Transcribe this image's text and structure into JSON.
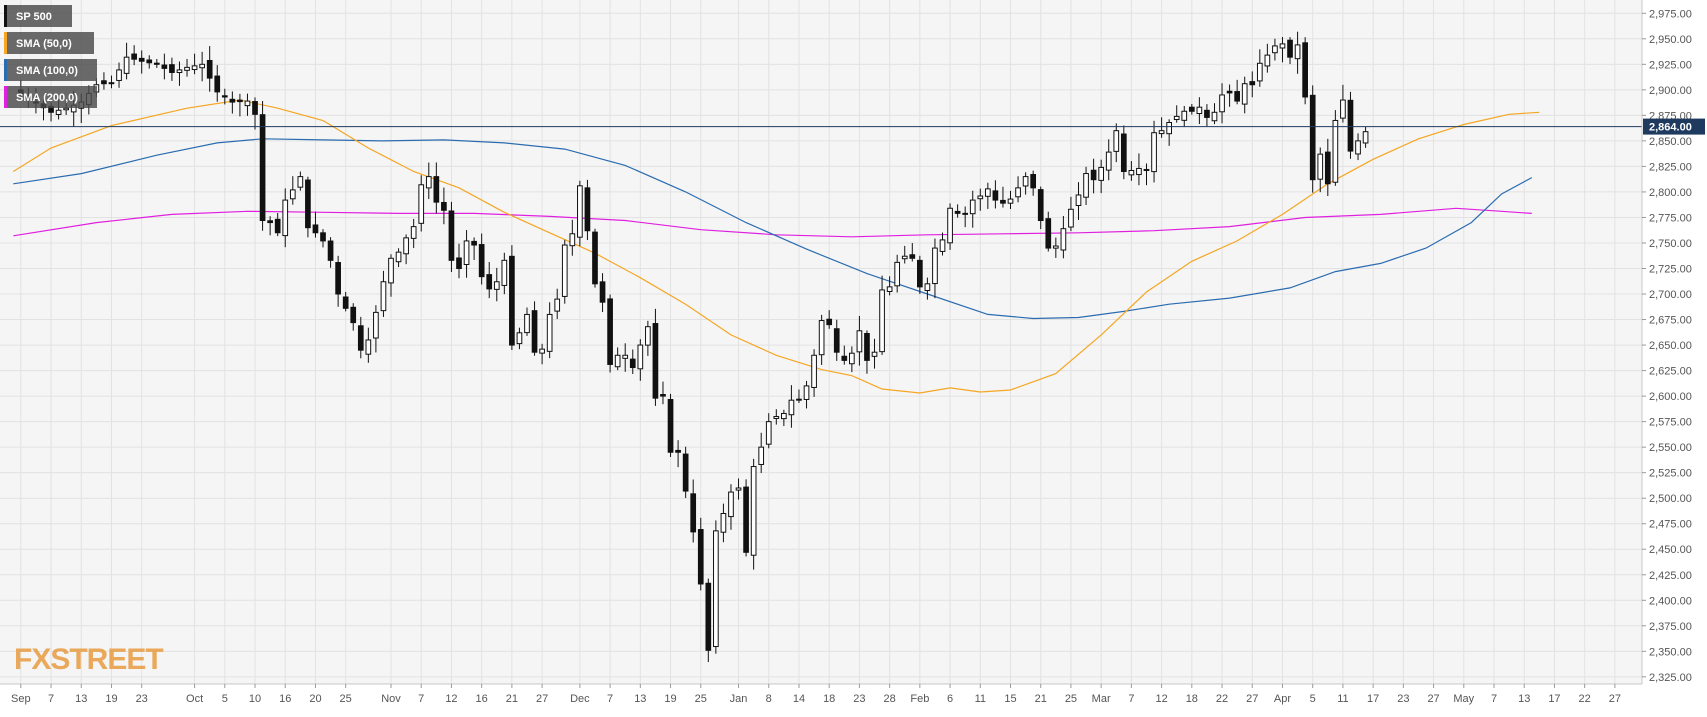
{
  "chart_data": {
    "type": "candlestick",
    "title": "",
    "instrument": "SP 500",
    "legend": [
      {
        "name": "SP 500",
        "color": "#111111"
      },
      {
        "name": "SMA (50,0)",
        "color": "#f5a623"
      },
      {
        "name": "SMA (100,0)",
        "color": "#2b6cb0"
      },
      {
        "name": "SMA (200,0)",
        "color": "#e020e0"
      }
    ],
    "ylim": [
      2318,
      2988
    ],
    "y_ticks": [
      "2,325.00",
      "2,350.00",
      "2,375.00",
      "2,400.00",
      "2,425.00",
      "2,450.00",
      "2,475.00",
      "2,500.00",
      "2,525.00",
      "2,550.00",
      "2,575.00",
      "2,600.00",
      "2,625.00",
      "2,650.00",
      "2,675.00",
      "2,700.00",
      "2,725.00",
      "2,750.00",
      "2,775.00",
      "2,800.00",
      "2,825.00",
      "2,850.00",
      "2,875.00",
      "2,900.00",
      "2,925.00",
      "2,950.00",
      "2,975.00"
    ],
    "x_ticks": [
      {
        "label": "Sep",
        "i": 0
      },
      {
        "label": "7",
        "i": 4
      },
      {
        "label": "13",
        "i": 8
      },
      {
        "label": "19",
        "i": 12
      },
      {
        "label": "23",
        "i": 16
      },
      {
        "label": "Oct",
        "i": 23
      },
      {
        "label": "5",
        "i": 27
      },
      {
        "label": "10",
        "i": 31
      },
      {
        "label": "16",
        "i": 35
      },
      {
        "label": "20",
        "i": 39
      },
      {
        "label": "25",
        "i": 43
      },
      {
        "label": "Nov",
        "i": 49
      },
      {
        "label": "7",
        "i": 53
      },
      {
        "label": "12",
        "i": 57
      },
      {
        "label": "16",
        "i": 61
      },
      {
        "label": "21",
        "i": 65
      },
      {
        "label": "27",
        "i": 69
      },
      {
        "label": "Dec",
        "i": 74
      },
      {
        "label": "7",
        "i": 78
      },
      {
        "label": "13",
        "i": 82
      },
      {
        "label": "19",
        "i": 86
      },
      {
        "label": "25",
        "i": 90
      },
      {
        "label": "Jan",
        "i": 95
      },
      {
        "label": "8",
        "i": 99
      },
      {
        "label": "14",
        "i": 103
      },
      {
        "label": "18",
        "i": 107
      },
      {
        "label": "23",
        "i": 111
      },
      {
        "label": "28",
        "i": 115
      },
      {
        "label": "Feb",
        "i": 119
      },
      {
        "label": "6",
        "i": 123
      },
      {
        "label": "11",
        "i": 127
      },
      {
        "label": "15",
        "i": 131
      },
      {
        "label": "21",
        "i": 135
      },
      {
        "label": "25",
        "i": 139
      },
      {
        "label": "Mar",
        "i": 143
      },
      {
        "label": "7",
        "i": 147
      },
      {
        "label": "12",
        "i": 151
      },
      {
        "label": "18",
        "i": 155
      },
      {
        "label": "22",
        "i": 159
      },
      {
        "label": "27",
        "i": 163
      },
      {
        "label": "Apr",
        "i": 167
      },
      {
        "label": "5",
        "i": 171
      },
      {
        "label": "11",
        "i": 175
      },
      {
        "label": "17",
        "i": 179
      },
      {
        "label": "23",
        "i": 183
      },
      {
        "label": "27",
        "i": 187
      },
      {
        "label": "May",
        "i": 191
      },
      {
        "label": "7",
        "i": 195
      },
      {
        "label": "13",
        "i": 199
      },
      {
        "label": "17",
        "i": 203
      },
      {
        "label": "22",
        "i": 207
      },
      {
        "label": "27",
        "i": 211
      }
    ],
    "x_index_range": [
      -1.3,
      213
    ],
    "close_points": [
      [
        0,
        2896
      ],
      [
        2,
        2887
      ],
      [
        4,
        2878
      ],
      [
        6,
        2882
      ],
      [
        8,
        2888
      ],
      [
        10,
        2905
      ],
      [
        12,
        2907
      ],
      [
        14,
        2932
      ],
      [
        16,
        2928
      ],
      [
        18,
        2925
      ],
      [
        20,
        2917
      ],
      [
        22,
        2922
      ],
      [
        24,
        2925
      ],
      [
        26,
        2898
      ],
      [
        28,
        2888
      ],
      [
        30,
        2889
      ],
      [
        31,
        2876
      ],
      [
        32,
        2772
      ],
      [
        33,
        2770
      ],
      [
        34,
        2760
      ],
      [
        35,
        2792
      ],
      [
        36,
        2802
      ],
      [
        37,
        2815
      ],
      [
        38,
        2765
      ],
      [
        39,
        2760
      ],
      [
        40,
        2752
      ],
      [
        41,
        2733
      ],
      [
        42,
        2700
      ],
      [
        43,
        2686
      ],
      [
        44,
        2672
      ],
      [
        45,
        2645
      ],
      [
        46,
        2655
      ],
      [
        47,
        2682
      ],
      [
        48,
        2712
      ],
      [
        49,
        2735
      ],
      [
        50,
        2741
      ],
      [
        51,
        2755
      ],
      [
        52,
        2766
      ],
      [
        53,
        2807
      ],
      [
        54,
        2815
      ],
      [
        55,
        2790
      ],
      [
        56,
        2782
      ],
      [
        57,
        2733
      ],
      [
        58,
        2725
      ],
      [
        59,
        2752
      ],
      [
        60,
        2748
      ],
      [
        61,
        2717
      ],
      [
        62,
        2705
      ],
      [
        63,
        2712
      ],
      [
        64,
        2733
      ],
      [
        65,
        2650
      ],
      [
        66,
        2662
      ],
      [
        67,
        2680
      ],
      [
        68,
        2643
      ],
      [
        69,
        2646
      ],
      [
        70,
        2680
      ],
      [
        71,
        2695
      ],
      [
        72,
        2748
      ],
      [
        73,
        2759
      ],
      [
        74,
        2806
      ],
      [
        75,
        2762
      ],
      [
        76,
        2710
      ],
      [
        77,
        2692
      ],
      [
        78,
        2631
      ],
      [
        79,
        2640
      ],
      [
        80,
        2640
      ],
      [
        81,
        2628
      ],
      [
        82,
        2650
      ],
      [
        83,
        2668
      ],
      [
        84,
        2598
      ],
      [
        85,
        2600
      ],
      [
        86,
        2545
      ],
      [
        87,
        2545
      ],
      [
        88,
        2507
      ],
      [
        89,
        2467
      ],
      [
        90,
        2416
      ],
      [
        91,
        2351
      ],
      [
        92,
        2468
      ],
      [
        93,
        2485
      ],
      [
        94,
        2506
      ],
      [
        95,
        2510
      ],
      [
        96,
        2447
      ],
      [
        97,
        2531
      ],
      [
        98,
        2550
      ],
      [
        99,
        2575
      ],
      [
        100,
        2580
      ],
      [
        101,
        2583
      ],
      [
        102,
        2596
      ],
      [
        103,
        2597
      ],
      [
        104,
        2610
      ],
      [
        105,
        2640
      ],
      [
        106,
        2674
      ],
      [
        107,
        2670
      ],
      [
        108,
        2643
      ],
      [
        109,
        2635
      ],
      [
        110,
        2642
      ],
      [
        111,
        2664
      ],
      [
        112,
        2635
      ],
      [
        113,
        2643
      ],
      [
        114,
        2704
      ],
      [
        115,
        2707
      ],
      [
        116,
        2731
      ],
      [
        117,
        2737
      ],
      [
        118,
        2735
      ],
      [
        119,
        2707
      ],
      [
        120,
        2710
      ],
      [
        121,
        2745
      ],
      [
        122,
        2753
      ],
      [
        123,
        2784
      ],
      [
        124,
        2779
      ],
      [
        125,
        2779
      ],
      [
        126,
        2792
      ],
      [
        127,
        2796
      ],
      [
        128,
        2803
      ],
      [
        129,
        2792
      ],
      [
        130,
        2789
      ],
      [
        131,
        2793
      ],
      [
        132,
        2804
      ],
      [
        133,
        2815
      ],
      [
        134,
        2804
      ],
      [
        135,
        2772
      ],
      [
        136,
        2745
      ],
      [
        137,
        2747
      ],
      [
        138,
        2764
      ],
      [
        139,
        2783
      ],
      [
        140,
        2797
      ],
      [
        141,
        2818
      ],
      [
        142,
        2812
      ],
      [
        143,
        2824
      ],
      [
        144,
        2839
      ],
      [
        145,
        2860
      ],
      [
        146,
        2820
      ],
      [
        147,
        2821
      ],
      [
        148,
        2823
      ],
      [
        149,
        2822
      ],
      [
        150,
        2858
      ],
      [
        151,
        2860
      ],
      [
        152,
        2868
      ],
      [
        153,
        2874
      ],
      [
        154,
        2879
      ],
      [
        155,
        2879
      ],
      [
        156,
        2883
      ],
      [
        157,
        2873
      ],
      [
        158,
        2878
      ],
      [
        159,
        2895
      ],
      [
        160,
        2897
      ],
      [
        161,
        2889
      ],
      [
        162,
        2906
      ],
      [
        163,
        2905
      ],
      [
        164,
        2926
      ],
      [
        165,
        2934
      ],
      [
        166,
        2943
      ],
      [
        167,
        2945
      ],
      [
        168,
        2932
      ],
      [
        169,
        2944
      ],
      [
        170,
        2893
      ],
      [
        171,
        2812
      ],
      [
        172,
        2837
      ],
      [
        173,
        2808
      ],
      [
        174,
        2870
      ],
      [
        175,
        2890
      ],
      [
        176,
        2840
      ],
      [
        177,
        2850
      ],
      [
        178,
        2859
      ]
    ],
    "sma50": [
      [
        -1,
        2820
      ],
      [
        4,
        2843
      ],
      [
        12,
        2865
      ],
      [
        22,
        2882
      ],
      [
        29,
        2890
      ],
      [
        34,
        2882
      ],
      [
        40,
        2870
      ],
      [
        46,
        2843
      ],
      [
        52,
        2820
      ],
      [
        58,
        2804
      ],
      [
        64,
        2780
      ],
      [
        70,
        2760
      ],
      [
        76,
        2740
      ],
      [
        82,
        2716
      ],
      [
        88,
        2690
      ],
      [
        94,
        2660
      ],
      [
        100,
        2640
      ],
      [
        106,
        2626
      ],
      [
        110,
        2620
      ],
      [
        114,
        2607
      ],
      [
        119,
        2603
      ],
      [
        123,
        2608
      ],
      [
        127,
        2604
      ],
      [
        131,
        2606
      ],
      [
        137,
        2622
      ],
      [
        143,
        2660
      ],
      [
        149,
        2702
      ],
      [
        155,
        2732
      ],
      [
        161,
        2752
      ],
      [
        167,
        2778
      ],
      [
        173,
        2808
      ],
      [
        179,
        2832
      ],
      [
        185,
        2852
      ],
      [
        191,
        2866
      ],
      [
        197,
        2876
      ],
      [
        201,
        2878
      ]
    ],
    "sma100": [
      [
        -1,
        2808
      ],
      [
        8,
        2818
      ],
      [
        18,
        2836
      ],
      [
        26,
        2848
      ],
      [
        32,
        2852
      ],
      [
        40,
        2851
      ],
      [
        48,
        2850
      ],
      [
        56,
        2851
      ],
      [
        64,
        2848
      ],
      [
        72,
        2842
      ],
      [
        80,
        2826
      ],
      [
        88,
        2800
      ],
      [
        96,
        2770
      ],
      [
        104,
        2744
      ],
      [
        112,
        2720
      ],
      [
        120,
        2700
      ],
      [
        128,
        2680
      ],
      [
        134,
        2676
      ],
      [
        140,
        2677
      ],
      [
        146,
        2683
      ],
      [
        152,
        2690
      ],
      [
        160,
        2696
      ],
      [
        168,
        2706
      ],
      [
        174,
        2722
      ],
      [
        180,
        2730
      ],
      [
        186,
        2745
      ],
      [
        192,
        2770
      ],
      [
        196,
        2798
      ],
      [
        200,
        2814
      ]
    ],
    "sma200": [
      [
        -1,
        2757
      ],
      [
        10,
        2770
      ],
      [
        20,
        2778
      ],
      [
        30,
        2781
      ],
      [
        40,
        2780
      ],
      [
        50,
        2779
      ],
      [
        60,
        2779
      ],
      [
        70,
        2776
      ],
      [
        80,
        2772
      ],
      [
        90,
        2763
      ],
      [
        100,
        2758
      ],
      [
        110,
        2756
      ],
      [
        120,
        2758
      ],
      [
        130,
        2759
      ],
      [
        140,
        2760
      ],
      [
        150,
        2762
      ],
      [
        160,
        2766
      ],
      [
        170,
        2775
      ],
      [
        180,
        2778
      ],
      [
        190,
        2784
      ],
      [
        196,
        2781
      ],
      [
        200,
        2779
      ]
    ],
    "current_price": 2864,
    "current_price_label": "2,864.00",
    "watermark": "FXSTREET",
    "grid": true
  }
}
